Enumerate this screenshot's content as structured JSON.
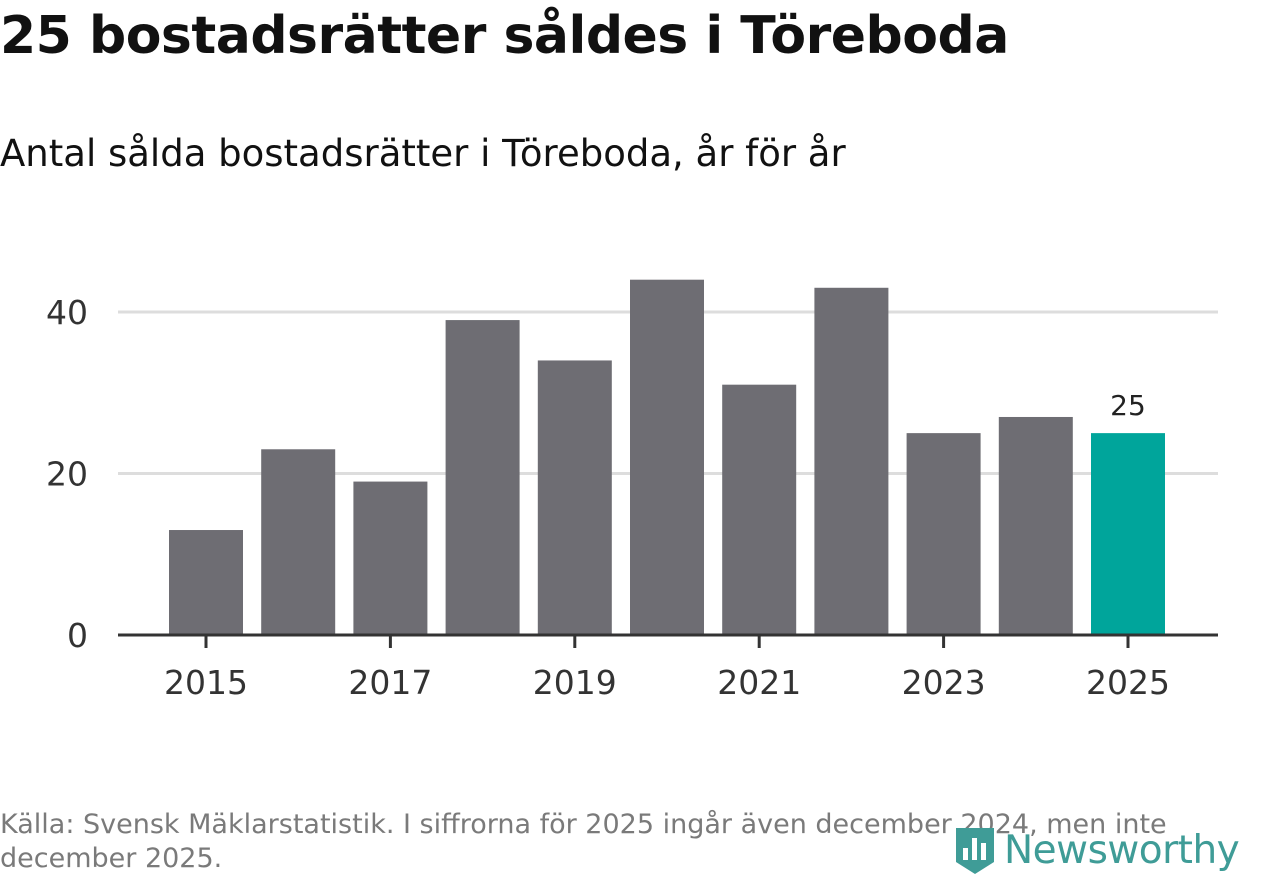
{
  "title": "25 bostadsrätter såldes i Töreboda",
  "subtitle": "Antal sålda bostadsrätter i Töreboda, år för år",
  "source": "Källa: Svensk Mäklarstatistik. I siffrorna för 2025 ingår även december 2024, men inte december 2025.",
  "logo": {
    "text": "Newsworthy",
    "icon": "newsworthy-logo-icon"
  },
  "colors": {
    "bar": "#6e6d73",
    "highlight": "#00a59b",
    "grid": "#dddddd",
    "axis": "#333333",
    "logo": "#3f9c97"
  },
  "chart_data": {
    "type": "bar",
    "title": "Antal sålda bostadsrätter i Töreboda, år för år",
    "xlabel": "",
    "ylabel": "",
    "categories": [
      "2015",
      "2016",
      "2017",
      "2018",
      "2019",
      "2020",
      "2021",
      "2022",
      "2023",
      "2024",
      "2025"
    ],
    "values": [
      13,
      23,
      19,
      39,
      34,
      44,
      31,
      43,
      25,
      27,
      25
    ],
    "highlight": "2025",
    "data_labels": [
      {
        "category": "2025",
        "text": "25"
      }
    ],
    "xticks": [
      "2015",
      "2017",
      "2019",
      "2021",
      "2023",
      "2025"
    ],
    "yticks": [
      0,
      20,
      40
    ],
    "ylim": [
      0,
      46
    ],
    "grid": true
  }
}
